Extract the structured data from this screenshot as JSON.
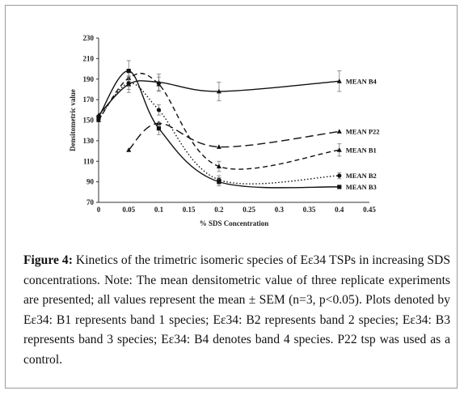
{
  "chart_data": {
    "type": "line",
    "xlabel": "% SDS Concentration",
    "ylabel": "Densitometric value",
    "xlim": [
      0,
      0.45
    ],
    "ylim": [
      70,
      230
    ],
    "x_ticks": [
      0,
      0.05,
      0.1,
      0.15,
      0.2,
      0.25,
      0.3,
      0.35,
      0.4,
      0.45
    ],
    "y_ticks": [
      70,
      90,
      110,
      130,
      150,
      170,
      190,
      210,
      230
    ],
    "x_tick_labels": [
      "0",
      "0.05",
      "0.1",
      "0.15",
      "0.2",
      "0.25",
      "0.3",
      "0.35",
      "0.4",
      "0.45"
    ],
    "y_tick_labels": [
      "70",
      "90",
      "110",
      "130",
      "150",
      "170",
      "190",
      "210",
      "230"
    ],
    "grid": false,
    "series": [
      {
        "name": "MEAN B4",
        "marker": "triangle",
        "dash": "solid",
        "x": [
          0,
          0.05,
          0.1,
          0.2,
          0.4
        ],
        "y": [
          155,
          185,
          187,
          178,
          188
        ],
        "err": [
          0,
          8,
          8,
          9,
          10
        ]
      },
      {
        "name": "MEAN P22",
        "marker": "triangle",
        "dash": "long-dash",
        "x": [
          0.05,
          0.1,
          0.2,
          0.4
        ],
        "y": [
          121,
          147,
          124,
          139
        ],
        "err": [
          0,
          0,
          0,
          0
        ]
      },
      {
        "name": "MEAN B1",
        "marker": "triangle",
        "dash": "dash",
        "x": [
          0,
          0.05,
          0.1,
          0.2,
          0.4
        ],
        "y": [
          150,
          191,
          185,
          105,
          121
        ],
        "err": [
          0,
          8,
          7,
          5,
          6
        ]
      },
      {
        "name": "MEAN B2",
        "marker": "circle",
        "dash": "dot",
        "x": [
          0,
          0.05,
          0.1,
          0.2,
          0.4
        ],
        "y": [
          151,
          186,
          160,
          92,
          96
        ],
        "err": [
          0,
          6,
          5,
          4,
          3
        ]
      },
      {
        "name": "MEAN B3",
        "marker": "square",
        "dash": "solid",
        "x": [
          0,
          0.05,
          0.1,
          0.2,
          0.4
        ],
        "y": [
          153,
          198,
          142,
          90,
          85
        ],
        "err": [
          0,
          10,
          6,
          4,
          0
        ]
      }
    ]
  },
  "caption": {
    "label": "Figure 4:",
    "text": " Kinetics of the trimetric isomeric species of Eε34 TSPs in increasing SDS concentrations. Note: The mean densitometric value of three replicate experiments are presented; all values represent the mean ± SEM (n=3, p<0.05). Plots denoted by Eε34: B1 represents band 1 species; Eε34: B2 represents band 2 species; Eε34: B3 represents band 3 species; Eε34: B4 denotes band 4 species. P22 tsp was used as a control."
  }
}
